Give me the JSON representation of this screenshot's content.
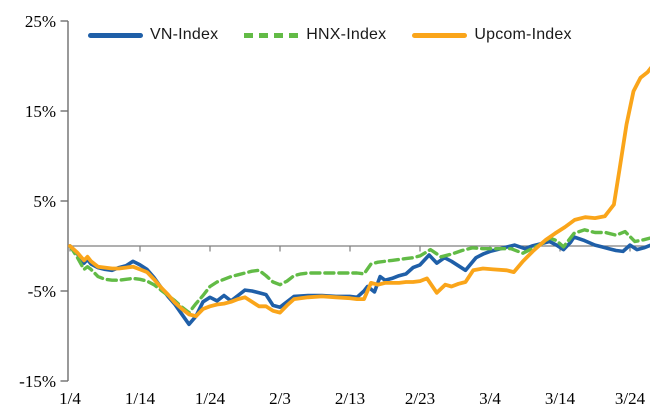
{
  "chart_data": {
    "type": "line",
    "title": "",
    "xlabel": "",
    "ylabel": "",
    "grid": "none (single horizontal line at 0%)",
    "legend_position": "top",
    "x_axis": {
      "unit": "date (month/day), day index measured from 1/4",
      "tick_days": [
        0,
        10,
        20,
        30,
        40,
        50,
        60,
        70,
        80
      ],
      "tick_labels": [
        "1/4",
        "1/14",
        "1/24",
        "2/3",
        "2/13",
        "2/23",
        "3/4",
        "3/14",
        "3/24"
      ],
      "range_days": [
        0,
        83
      ]
    },
    "y_axis": {
      "unit": "percent change",
      "tick_values": [
        25,
        15,
        5,
        -5,
        -15
      ],
      "tick_labels": [
        "25%",
        "15%",
        "5%",
        "-5%",
        "-15%"
      ],
      "ylim": [
        -15,
        25
      ],
      "zero_line": true
    },
    "legend": [
      {
        "label": "VN-Index",
        "color": "#1F5FA8",
        "style": "solid"
      },
      {
        "label": "HNX-Index",
        "color": "#62BB46",
        "style": "dashed"
      },
      {
        "label": "Upcom-Index",
        "color": "#FAA51A",
        "style": "solid"
      }
    ],
    "series": [
      {
        "name": "VN-Index",
        "color": "#1F5FA8",
        "style": "solid",
        "width": 3.6,
        "points": [
          [
            0,
            0
          ],
          [
            1,
            -0.8
          ],
          [
            2,
            -1.9
          ],
          [
            2.5,
            -1.5
          ],
          [
            3,
            -2.0
          ],
          [
            4,
            -2.4
          ],
          [
            5,
            -2.6
          ],
          [
            6,
            -2.7
          ],
          [
            7,
            -2.4
          ],
          [
            8,
            -2.2
          ],
          [
            9,
            -1.7
          ],
          [
            10,
            -2.1
          ],
          [
            11,
            -2.6
          ],
          [
            12,
            -3.5
          ],
          [
            13,
            -4.6
          ],
          [
            14,
            -5.6
          ],
          [
            15,
            -6.5
          ],
          [
            16,
            -7.6
          ],
          [
            17,
            -8.7
          ],
          [
            18,
            -7.8
          ],
          [
            19,
            -6.2
          ],
          [
            20,
            -5.7
          ],
          [
            21,
            -6.1
          ],
          [
            22,
            -5.5
          ],
          [
            23,
            -6.1
          ],
          [
            24,
            -5.5
          ],
          [
            25,
            -4.9
          ],
          [
            26,
            -5.0
          ],
          [
            27,
            -5.2
          ],
          [
            28,
            -5.4
          ],
          [
            29,
            -6.6
          ],
          [
            30,
            -6.8
          ],
          [
            31,
            -6.2
          ],
          [
            32,
            -5.6
          ],
          [
            34,
            -5.5
          ],
          [
            36,
            -5.5
          ],
          [
            38,
            -5.6
          ],
          [
            40,
            -5.6
          ],
          [
            41,
            -5.7
          ],
          [
            42,
            -5.0
          ],
          [
            42.5,
            -4.5
          ],
          [
            43.5,
            -5.1
          ],
          [
            44.3,
            -3.4
          ],
          [
            45,
            -3.8
          ],
          [
            46,
            -3.6
          ],
          [
            47,
            -3.3
          ],
          [
            48,
            -3.1
          ],
          [
            49,
            -2.4
          ],
          [
            50,
            -2.1
          ],
          [
            51.3,
            -1.0
          ],
          [
            52.4,
            -1.9
          ],
          [
            53.5,
            -1.3
          ],
          [
            54.5,
            -1.7
          ],
          [
            55.5,
            -2.2
          ],
          [
            56.5,
            -2.7
          ],
          [
            58,
            -1.3
          ],
          [
            59,
            -0.9
          ],
          [
            60,
            -0.6
          ],
          [
            61,
            -0.4
          ],
          [
            62.5,
            -0.1
          ],
          [
            63.5,
            0.1
          ],
          [
            65,
            -0.3
          ],
          [
            66,
            0.0
          ],
          [
            67,
            0.2
          ],
          [
            68.5,
            0.5
          ],
          [
            69.5,
            0.1
          ],
          [
            70.5,
            -0.4
          ],
          [
            71.5,
            0.4
          ],
          [
            72,
            1.0
          ],
          [
            73.5,
            0.6
          ],
          [
            75,
            0.1
          ],
          [
            76,
            -0.1
          ],
          [
            77,
            -0.3
          ],
          [
            78,
            -0.5
          ],
          [
            79,
            -0.6
          ],
          [
            80,
            0.1
          ],
          [
            81,
            -0.4
          ],
          [
            82,
            -0.2
          ],
          [
            83,
            0.1
          ]
        ]
      },
      {
        "name": "HNX-Index",
        "color": "#62BB46",
        "style": "dashed",
        "width": 3.4,
        "points": [
          [
            0,
            0
          ],
          [
            1,
            -1.2
          ],
          [
            2,
            -2.6
          ],
          [
            2.5,
            -2.3
          ],
          [
            3,
            -2.6
          ],
          [
            4,
            -3.4
          ],
          [
            5,
            -3.7
          ],
          [
            6,
            -3.8
          ],
          [
            7,
            -3.8
          ],
          [
            8,
            -3.7
          ],
          [
            9,
            -3.6
          ],
          [
            10,
            -3.7
          ],
          [
            11,
            -3.9
          ],
          [
            12,
            -4.3
          ],
          [
            13,
            -4.9
          ],
          [
            14,
            -5.5
          ],
          [
            15,
            -6.1
          ],
          [
            16,
            -6.8
          ],
          [
            17,
            -7.4
          ],
          [
            18,
            -6.4
          ],
          [
            19,
            -5.5
          ],
          [
            20,
            -4.5
          ],
          [
            21,
            -4.0
          ],
          [
            22,
            -3.7
          ],
          [
            23,
            -3.4
          ],
          [
            24,
            -3.2
          ],
          [
            25,
            -3.0
          ],
          [
            26,
            -2.8
          ],
          [
            27,
            -2.7
          ],
          [
            28,
            -3.3
          ],
          [
            29,
            -4.0
          ],
          [
            30,
            -4.3
          ],
          [
            31,
            -3.9
          ],
          [
            32,
            -3.3
          ],
          [
            33,
            -3.1
          ],
          [
            34,
            -3.0
          ],
          [
            36,
            -3.0
          ],
          [
            38,
            -3.0
          ],
          [
            40,
            -3.0
          ],
          [
            41,
            -3.0
          ],
          [
            42,
            -3.1
          ],
          [
            43,
            -2.0
          ],
          [
            44,
            -1.8
          ],
          [
            45,
            -1.7
          ],
          [
            46,
            -1.6
          ],
          [
            47,
            -1.5
          ],
          [
            48,
            -1.4
          ],
          [
            49,
            -1.3
          ],
          [
            50,
            -1.1
          ],
          [
            51.5,
            -0.4
          ],
          [
            53,
            -1.2
          ],
          [
            54.5,
            -0.9
          ],
          [
            56,
            -0.5
          ],
          [
            57.5,
            -0.2
          ],
          [
            59,
            -0.3
          ],
          [
            61,
            -0.3
          ],
          [
            63,
            -0.3
          ],
          [
            64.7,
            -0.8
          ],
          [
            66,
            -0.3
          ],
          [
            67.5,
            0.3
          ],
          [
            68.5,
            0.9
          ],
          [
            69.5,
            0.6
          ],
          [
            70.5,
            -0.1
          ],
          [
            72,
            1.4
          ],
          [
            73.5,
            1.8
          ],
          [
            75,
            1.5
          ],
          [
            76.5,
            1.5
          ],
          [
            78,
            1.2
          ],
          [
            79.3,
            1.6
          ],
          [
            80.7,
            0.5
          ],
          [
            82,
            0.7
          ],
          [
            83,
            0.9
          ]
        ]
      },
      {
        "name": "Upcom-Index",
        "color": "#FAA51A",
        "style": "solid",
        "width": 3.8,
        "points": [
          [
            0,
            0
          ],
          [
            1,
            -0.7
          ],
          [
            2,
            -1.6
          ],
          [
            2.5,
            -1.2
          ],
          [
            3,
            -1.7
          ],
          [
            4,
            -2.3
          ],
          [
            5,
            -2.4
          ],
          [
            6,
            -2.5
          ],
          [
            7,
            -2.5
          ],
          [
            8,
            -2.4
          ],
          [
            9,
            -2.3
          ],
          [
            10,
            -2.6
          ],
          [
            11,
            -2.9
          ],
          [
            12,
            -3.7
          ],
          [
            13,
            -4.6
          ],
          [
            14,
            -5.4
          ],
          [
            15,
            -6.3
          ],
          [
            16,
            -7.0
          ],
          [
            17,
            -7.6
          ],
          [
            18,
            -7.8
          ],
          [
            19,
            -7.0
          ],
          [
            20,
            -6.7
          ],
          [
            21,
            -6.5
          ],
          [
            22,
            -6.4
          ],
          [
            23,
            -6.2
          ],
          [
            24,
            -5.9
          ],
          [
            25,
            -5.7
          ],
          [
            26,
            -6.2
          ],
          [
            27,
            -6.7
          ],
          [
            28,
            -6.7
          ],
          [
            29,
            -7.2
          ],
          [
            30,
            -7.4
          ],
          [
            31,
            -6.6
          ],
          [
            32,
            -5.9
          ],
          [
            34,
            -5.7
          ],
          [
            36,
            -5.6
          ],
          [
            38,
            -5.7
          ],
          [
            40,
            -5.8
          ],
          [
            41,
            -5.9
          ],
          [
            42,
            -5.9
          ],
          [
            43,
            -4.1
          ],
          [
            44,
            -4.3
          ],
          [
            45,
            -4.1
          ],
          [
            46,
            -4.1
          ],
          [
            47,
            -4.1
          ],
          [
            48,
            -4.0
          ],
          [
            49,
            -4.0
          ],
          [
            50,
            -3.9
          ],
          [
            51,
            -3.6
          ],
          [
            52.4,
            -5.2
          ],
          [
            53.6,
            -4.3
          ],
          [
            54.5,
            -4.5
          ],
          [
            55.5,
            -4.2
          ],
          [
            56.5,
            -4.0
          ],
          [
            57.6,
            -2.7
          ],
          [
            59,
            -2.5
          ],
          [
            60.5,
            -2.6
          ],
          [
            62.4,
            -2.7
          ],
          [
            63.4,
            -2.9
          ],
          [
            64.7,
            -1.7
          ],
          [
            66.1,
            -0.6
          ],
          [
            67.1,
            0.1
          ],
          [
            68,
            0.7
          ],
          [
            69.3,
            1.4
          ],
          [
            70.7,
            2.1
          ],
          [
            72.1,
            2.9
          ],
          [
            73.6,
            3.2
          ],
          [
            75,
            3.1
          ],
          [
            76.4,
            3.3
          ],
          [
            77.1,
            4.0
          ],
          [
            77.7,
            4.6
          ],
          [
            78.5,
            8.5
          ],
          [
            79.5,
            13.5
          ],
          [
            80.5,
            17.2
          ],
          [
            81.5,
            18.7
          ],
          [
            82.5,
            19.3
          ],
          [
            83,
            19.8
          ]
        ]
      }
    ],
    "colors": {
      "axis_line": "#6E6E6E",
      "zero_line": "#7F7F7F",
      "tick_label": "#000000",
      "background": "#FFFFFF"
    }
  }
}
